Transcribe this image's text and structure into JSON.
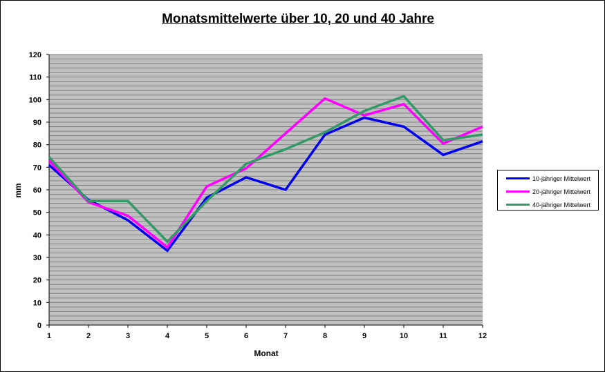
{
  "chart_data": {
    "type": "line",
    "title": "Monatsmittelwerte über 10, 20 und 40 Jahre",
    "xlabel": "Monat",
    "ylabel": "mm",
    "x": [
      1,
      2,
      3,
      4,
      5,
      6,
      7,
      8,
      9,
      10,
      11,
      12
    ],
    "ylim": [
      0,
      120
    ],
    "y_ticks": [
      0,
      10,
      20,
      30,
      40,
      50,
      60,
      70,
      80,
      90,
      100,
      110,
      120
    ],
    "grid": true,
    "minor_grid_step": 2,
    "plot_background": "#c0c0c0",
    "legend_position": "right",
    "series": [
      {
        "name": "10-jähriger Mittelwert",
        "color": "#0000ee",
        "values": [
          71,
          55.5,
          46.5,
          33,
          56.5,
          65.5,
          60,
          84.5,
          92,
          88,
          75.5,
          81.5
        ]
      },
      {
        "name": "20-jähriger Mittelwert",
        "color": "#ff00ff",
        "values": [
          73,
          54.5,
          48.5,
          34.5,
          61.5,
          69.5,
          85,
          100.5,
          93,
          98,
          80.5,
          88
        ]
      },
      {
        "name": "40-jähriger Mittelwert",
        "color": "#339966",
        "values": [
          74.5,
          55,
          55,
          37,
          55,
          71.5,
          78,
          85.5,
          95,
          101.5,
          82,
          84.5
        ]
      }
    ]
  }
}
